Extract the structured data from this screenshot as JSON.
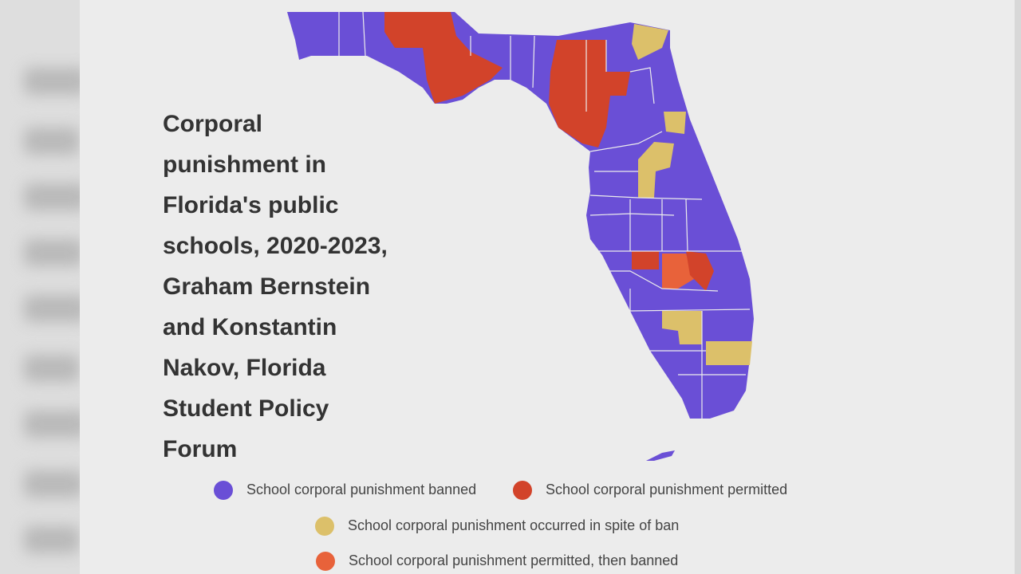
{
  "title": "Corporal punishment in Florida's public schools, 2020-2023, Graham Bernstein and Konstantin Nakov, Florida Student Policy Forum",
  "legend": [
    {
      "label": "School corporal punishment banned",
      "color": "#6a4fd6"
    },
    {
      "label": "School corporal punishment permitted",
      "color": "#d2432a"
    },
    {
      "label": "School corporal punishment occurred in spite of ban",
      "color": "#dcc06a"
    },
    {
      "label": "School corporal punishment permitted, then banned",
      "color": "#e8623a"
    }
  ]
}
